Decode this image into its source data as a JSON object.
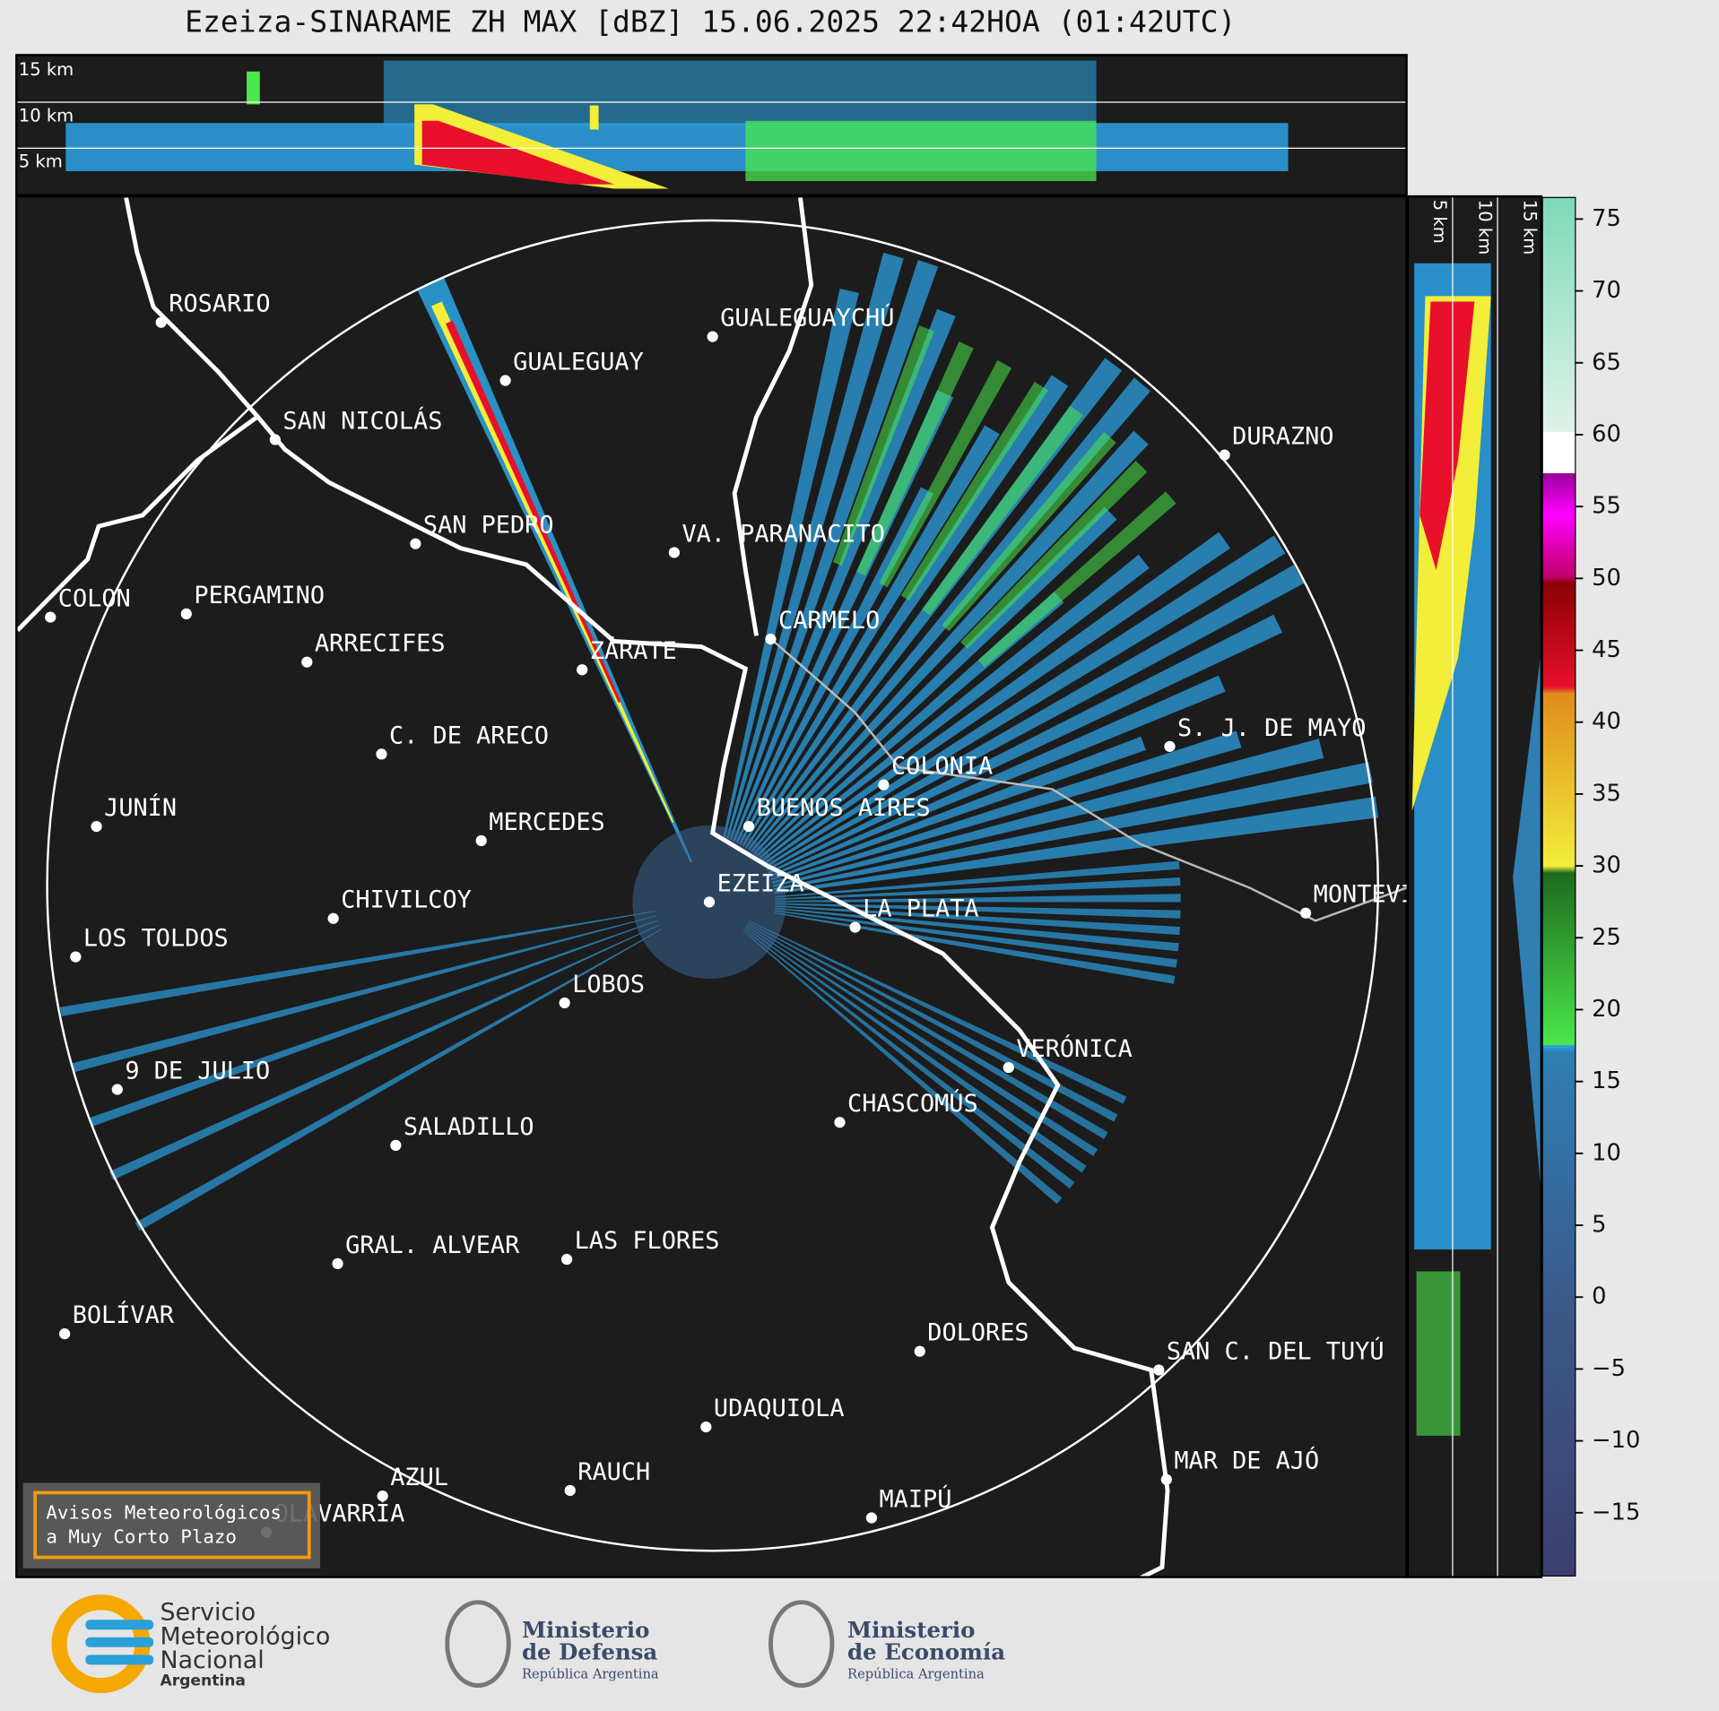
{
  "title": "Ezeiza-SINARAME ZH MAX [dBZ] 15.06.2025 22:42HOA (01:42UTC)",
  "top_height_labels": [
    "15 km",
    "10 km",
    "5 km"
  ],
  "side_height_labels": [
    "5 km",
    "10 km",
    "15 km"
  ],
  "cities": [
    {
      "name": "ROSARIO"
    },
    {
      "name": "SAN NICOLÁS"
    },
    {
      "name": "GUALEGUAY"
    },
    {
      "name": "GUALEGUAYCHÚ"
    },
    {
      "name": "SAN PEDRO"
    },
    {
      "name": "VA. PARANACITO"
    },
    {
      "name": "DURAZNO"
    },
    {
      "name": "COLON"
    },
    {
      "name": "PERGAMINO"
    },
    {
      "name": "CARMELO"
    },
    {
      "name": "ARRECIFES"
    },
    {
      "name": "ZÁRATE"
    },
    {
      "name": "C. DE ARECO"
    },
    {
      "name": "S. J. DE MAYO"
    },
    {
      "name": "COLONIA"
    },
    {
      "name": "JUNÍN"
    },
    {
      "name": "BUENOS AIRES"
    },
    {
      "name": "MERCEDES"
    },
    {
      "name": "EZEIZA"
    },
    {
      "name": "MONTEVIDEO"
    },
    {
      "name": "CHIVILCOY"
    },
    {
      "name": "LA PLATA"
    },
    {
      "name": "LOS TOLDOS"
    },
    {
      "name": "LOBOS"
    },
    {
      "name": "VERÓNICA"
    },
    {
      "name": "9 DE JULIO"
    },
    {
      "name": "CHASCOMÚS"
    },
    {
      "name": "SALADILLO"
    },
    {
      "name": "GRAL. ALVEAR"
    },
    {
      "name": "LAS FLORES"
    },
    {
      "name": "BOLÍVAR"
    },
    {
      "name": "DOLORES"
    },
    {
      "name": "SAN C. DEL TUYÚ"
    },
    {
      "name": "UDAQUIOLA"
    },
    {
      "name": "RAUCH"
    },
    {
      "name": "MAR DE AJÓ"
    },
    {
      "name": "AZUL"
    },
    {
      "name": "OLAVARRÍA"
    },
    {
      "name": "MAIPÚ"
    }
  ],
  "colorbar": {
    "lim": [
      -19.4,
      76.5
    ],
    "ticks": [
      75,
      70,
      65,
      60,
      55,
      50,
      45,
      40,
      35,
      30,
      25,
      20,
      15,
      10,
      5,
      0,
      {
        "value": -5,
        "label": "−5"
      },
      {
        "value": -10,
        "label": "−10"
      },
      {
        "value": -15,
        "label": "−15"
      }
    ]
  },
  "warning_box": {
    "line1": "Avisos Meteorológicos",
    "line2": "a Muy Corto Plazo"
  },
  "footer": {
    "smn": [
      "Servicio",
      "Meteorológico",
      "Nacional",
      "Argentina"
    ],
    "defensa": {
      "title": [
        "Ministerio",
        "de Defensa"
      ],
      "subtitle": "República Argentina"
    },
    "economia": {
      "title": [
        "Ministerio",
        "de Economía"
      ],
      "subtitle": "República Argentina"
    }
  }
}
